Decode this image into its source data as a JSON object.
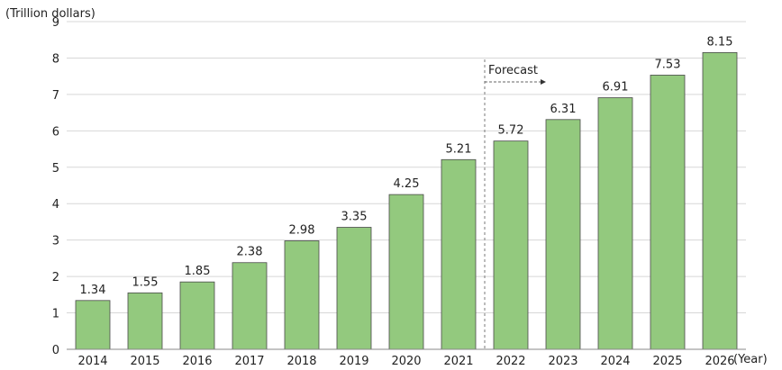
{
  "chart_data": {
    "type": "bar",
    "title": "",
    "ylabel": "(Trillion dollars)",
    "xlabel": "(Year)",
    "ylim": [
      0,
      9
    ],
    "yticks": [
      0,
      1,
      2,
      3,
      4,
      5,
      6,
      7,
      8,
      9
    ],
    "grid": true,
    "categories": [
      "2014",
      "2015",
      "2016",
      "2017",
      "2018",
      "2019",
      "2020",
      "2021",
      "2022",
      "2023",
      "2024",
      "2025",
      "2026"
    ],
    "values": [
      1.34,
      1.55,
      1.85,
      2.38,
      2.98,
      3.35,
      4.25,
      5.21,
      5.72,
      6.31,
      6.91,
      7.53,
      8.15
    ],
    "value_labels": [
      "1.34",
      "1.55",
      "1.85",
      "2.38",
      "2.98",
      "3.35",
      "4.25",
      "5.21",
      "5.72",
      "6.31",
      "6.91",
      "7.53",
      "8.15"
    ],
    "forecast": {
      "label": "Forecast",
      "start_category": "2022"
    },
    "colors": {
      "bar": "#93c97e",
      "bar_border": "#4a4a4a",
      "grid": "#d7d7d7"
    }
  }
}
